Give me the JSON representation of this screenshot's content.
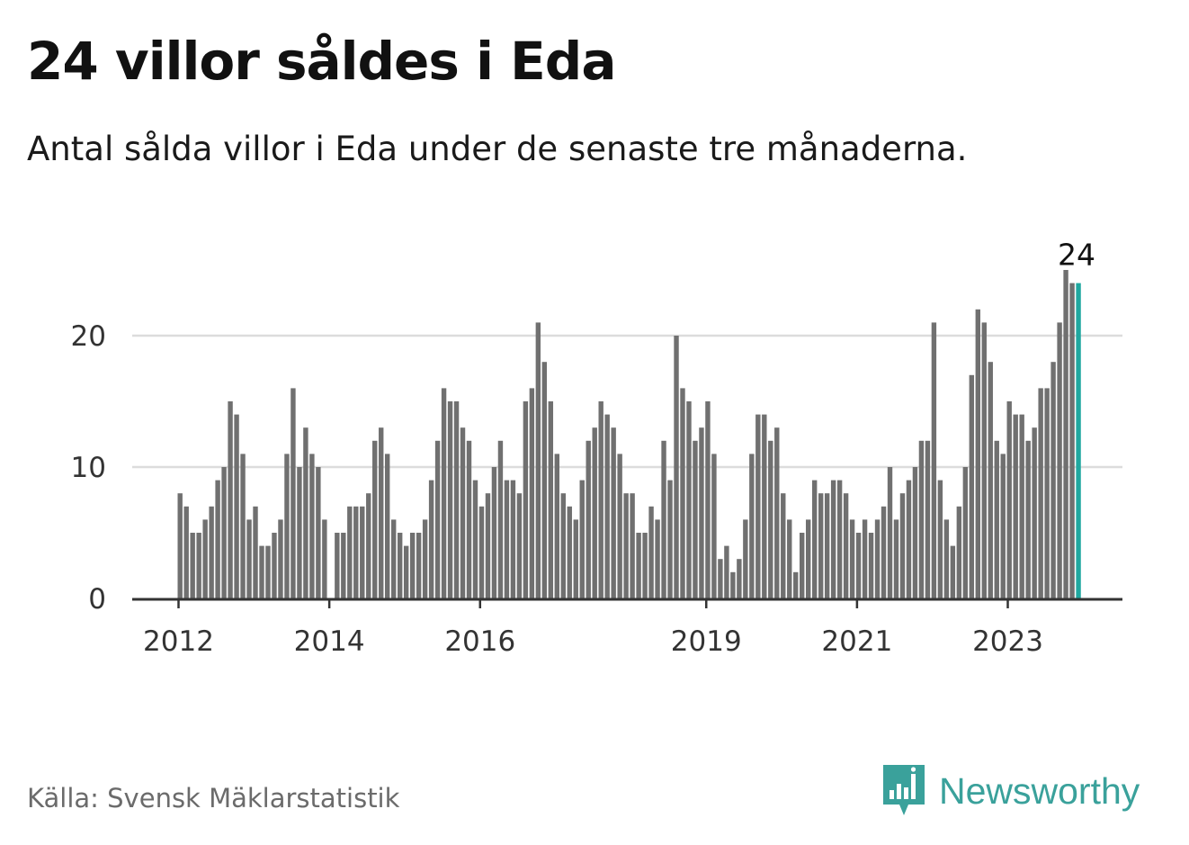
{
  "header": {
    "title": "24 villor såldes i Eda",
    "subtitle": "Antal sålda villor i Eda under de senaste tre månaderna."
  },
  "chart_data": {
    "type": "bar",
    "x_start": "2012-01",
    "x_ticks": [
      "2012",
      "2014",
      "2016",
      "2019",
      "2021",
      "2023"
    ],
    "y_ticks": [
      0,
      10,
      20
    ],
    "ylim": [
      0,
      26
    ],
    "grid": true,
    "highlight_last": true,
    "last_value_label": "24",
    "bar_color": "#707070",
    "highlight_color": "#1fa8a0",
    "values": [
      8,
      7,
      5,
      5,
      6,
      7,
      9,
      10,
      15,
      14,
      11,
      6,
      7,
      4,
      4,
      5,
      6,
      11,
      16,
      10,
      13,
      11,
      10,
      6,
      0,
      5,
      5,
      7,
      7,
      7,
      8,
      12,
      13,
      11,
      6,
      5,
      4,
      5,
      5,
      6,
      9,
      12,
      16,
      15,
      15,
      13,
      12,
      9,
      7,
      8,
      10,
      12,
      9,
      9,
      8,
      15,
      16,
      21,
      18,
      15,
      11,
      8,
      7,
      6,
      9,
      12,
      13,
      15,
      14,
      13,
      11,
      8,
      8,
      5,
      5,
      7,
      6,
      12,
      9,
      20,
      16,
      15,
      12,
      13,
      15,
      11,
      3,
      4,
      2,
      3,
      6,
      11,
      14,
      14,
      12,
      13,
      8,
      6,
      2,
      5,
      6,
      9,
      8,
      8,
      9,
      9,
      8,
      6,
      5,
      6,
      5,
      6,
      7,
      10,
      6,
      8,
      9,
      10,
      12,
      12,
      21,
      9,
      6,
      4,
      7,
      10,
      17,
      22,
      21,
      18,
      12,
      11,
      15,
      14,
      14,
      12,
      13,
      16,
      16,
      18,
      21,
      25,
      24,
      24
    ]
  },
  "footer": {
    "source": "Källa: Svensk Mäklarstatistik",
    "brand": "Newsworthy",
    "brand_icon": "newsworthy-logo-icon",
    "brand_color": "#3aa19b"
  }
}
